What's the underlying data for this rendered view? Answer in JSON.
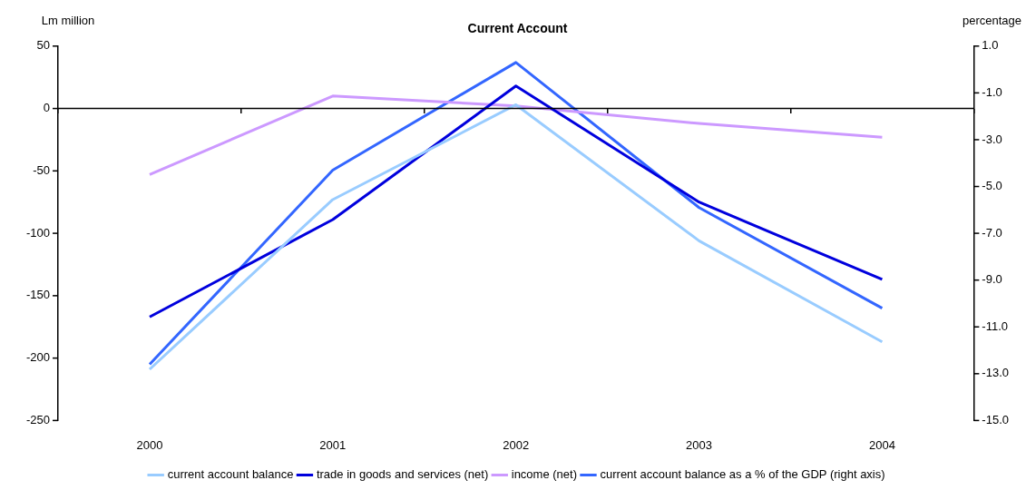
{
  "chart_data": {
    "type": "line",
    "title": "Current Account",
    "ylabel": "Lm million",
    "y2label": "percentage",
    "categories": [
      "2000",
      "2001",
      "2002",
      "2003",
      "2004"
    ],
    "series": [
      {
        "name": "current account balance",
        "color": "#99ccff",
        "values": [
          -209,
          -73,
          3,
          -106,
          -187
        ]
      },
      {
        "name": "trade in goods and services (net)",
        "color": "#0000dd",
        "values": [
          -167,
          -89,
          18,
          -75,
          -137
        ]
      },
      {
        "name": "income (net)",
        "color": "#cc99ff",
        "values": [
          -53,
          10,
          2,
          -12,
          -23
        ]
      },
      {
        "name": "current account balance as a % of the GDP (right axis)",
        "color": "#3366ff",
        "axis": "y2",
        "values": [
          -12.6,
          -4.3,
          0.3,
          -5.9,
          -10.2
        ]
      }
    ],
    "ylim": [
      -250,
      50
    ],
    "yticks": [
      -250,
      -200,
      -150,
      -100,
      -50,
      0,
      50
    ],
    "y2lim": [
      -15,
      1
    ],
    "y2ticks": [
      {
        "value": -15,
        "label": "-15.0"
      },
      {
        "value": -13,
        "label": "-13.0"
      },
      {
        "value": -11,
        "label": "-11.0"
      },
      {
        "value": -9,
        "label": "-9.0"
      },
      {
        "value": -7,
        "label": "-7.0"
      },
      {
        "value": -5,
        "label": "-5.0"
      },
      {
        "value": -3,
        "label": "-3.0"
      },
      {
        "value": -1,
        "label": "-1.0"
      },
      {
        "value": 1,
        "label": "1.0"
      }
    ],
    "ref_lines": [
      {
        "axis": "y",
        "value": 0,
        "color": "#000000"
      }
    ],
    "grid": false,
    "legend": "bottom",
    "marker": "none",
    "line_style": "solid"
  }
}
